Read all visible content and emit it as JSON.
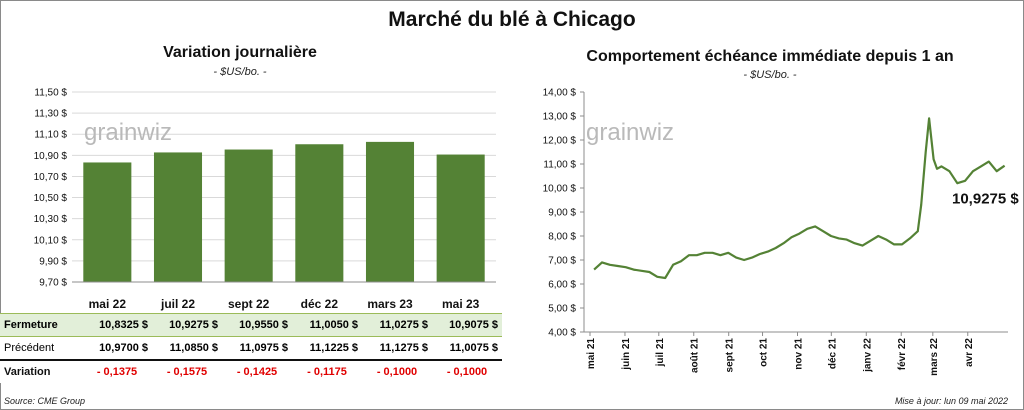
{
  "main_title": "Marché du blé à Chicago",
  "source": "Source: CME Group",
  "updated": "Mise à jour: lun 09 mai 2022",
  "watermark": "grainwiz",
  "colors": {
    "bar": "#548235",
    "line": "#548235",
    "table_highlight": "#e2efd9",
    "negative": "#e00000"
  },
  "left_panel": {
    "title": "Variation  journalière",
    "unit": "- $US/bo. -",
    "table": {
      "rows": [
        {
          "label": "Fermeture",
          "values": [
            "10,8325 $",
            "10,9275 $",
            "10,9550 $",
            "11,0050 $",
            "11,0275 $",
            "10,9075 $"
          ]
        },
        {
          "label": "Précédent",
          "values": [
            "10,9700 $",
            "11,0850 $",
            "11,0975 $",
            "11,1225 $",
            "11,1275 $",
            "11,0075 $"
          ]
        },
        {
          "label": "Variation",
          "values": [
            "- 0,1375",
            "- 0,1575",
            "- 0,1425",
            "- 0,1175",
            "- 0,1000",
            "- 0,1000"
          ]
        }
      ]
    }
  },
  "right_panel": {
    "title": "Comportement  échéance immédiate depuis 1 an",
    "unit": "- $US/bo. -",
    "last_value_label": "10,9275 $"
  },
  "chart_data": [
    {
      "type": "bar",
      "categories": [
        "mai 22",
        "juil 22",
        "sept 22",
        "déc 22",
        "mars 23",
        "mai 23"
      ],
      "values": [
        10.8325,
        10.9275,
        10.955,
        11.005,
        11.0275,
        10.9075
      ],
      "ylim": [
        9.7,
        11.5
      ],
      "yticks": [
        9.7,
        9.9,
        10.1,
        10.3,
        10.5,
        10.7,
        10.9,
        11.1,
        11.3,
        11.5
      ],
      "ytick_labels": [
        "9,70 $",
        "9,90 $",
        "10,10 $",
        "10,30 $",
        "10,50 $",
        "10,70 $",
        "10,90 $",
        "11,10 $",
        "11,30 $",
        "11,50 $"
      ],
      "grid": true
    },
    {
      "type": "line",
      "xlabels": [
        "mai 21",
        "juin 21",
        "juil 21",
        "août 21",
        "sept 21",
        "oct 21",
        "nov 21",
        "déc 21",
        "janv 22",
        "févr 22",
        "mars 22",
        "avr 22"
      ],
      "x": [
        "2021-05-10",
        "2021-05-17",
        "2021-05-24",
        "2021-05-31",
        "2021-06-07",
        "2021-06-14",
        "2021-06-21",
        "2021-06-28",
        "2021-07-05",
        "2021-07-12",
        "2021-07-19",
        "2021-07-26",
        "2021-08-02",
        "2021-08-09",
        "2021-08-16",
        "2021-08-23",
        "2021-08-30",
        "2021-09-06",
        "2021-09-13",
        "2021-09-20",
        "2021-09-27",
        "2021-10-04",
        "2021-10-11",
        "2021-10-18",
        "2021-10-25",
        "2021-11-01",
        "2021-11-08",
        "2021-11-15",
        "2021-11-22",
        "2021-11-29",
        "2021-12-06",
        "2021-12-13",
        "2021-12-20",
        "2021-12-27",
        "2022-01-03",
        "2022-01-10",
        "2022-01-17",
        "2022-01-24",
        "2022-01-31",
        "2022-02-07",
        "2022-02-14",
        "2022-02-21",
        "2022-02-24",
        "2022-02-28",
        "2022-03-03",
        "2022-03-07",
        "2022-03-10",
        "2022-03-14",
        "2022-03-21",
        "2022-03-28",
        "2022-04-04",
        "2022-04-11",
        "2022-04-18",
        "2022-04-25",
        "2022-05-02",
        "2022-05-09"
      ],
      "values": [
        6.6,
        6.9,
        6.8,
        6.75,
        6.7,
        6.6,
        6.55,
        6.5,
        6.3,
        6.25,
        6.8,
        6.95,
        7.2,
        7.2,
        7.3,
        7.3,
        7.2,
        7.3,
        7.1,
        7.0,
        7.1,
        7.25,
        7.35,
        7.5,
        7.7,
        7.95,
        8.1,
        8.3,
        8.4,
        8.2,
        8.0,
        7.9,
        7.85,
        7.7,
        7.6,
        7.8,
        8.0,
        7.85,
        7.65,
        7.65,
        7.9,
        8.2,
        9.3,
        11.5,
        12.9,
        11.2,
        10.8,
        10.9,
        10.7,
        10.2,
        10.3,
        10.7,
        10.9,
        11.1,
        10.7,
        10.9275
      ],
      "ylim": [
        4.0,
        14.0
      ],
      "yticks": [
        4,
        5,
        6,
        7,
        8,
        9,
        10,
        11,
        12,
        13,
        14
      ],
      "ytick_labels": [
        "4,00 $",
        "5,00 $",
        "6,00 $",
        "7,00 $",
        "8,00 $",
        "9,00 $",
        "10,00 $",
        "11,00 $",
        "12,00 $",
        "13,00 $",
        "14,00 $"
      ],
      "grid": false
    }
  ]
}
